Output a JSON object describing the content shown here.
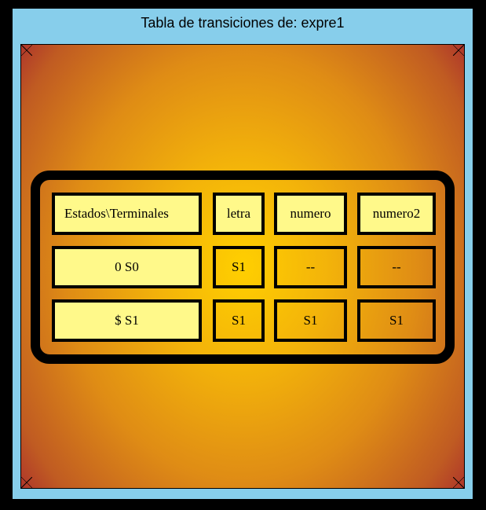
{
  "window": {
    "title": "Tabla de transiciones de: expre1"
  },
  "colors": {
    "frame": "#87ceeb",
    "background": "#000000",
    "cell_light": "#fff98a",
    "gradient_center": "#ffcf00",
    "gradient_edge": "#b03a2a"
  },
  "table": {
    "headers": [
      "Estados\\Terminales",
      "letra",
      "numero",
      "numero2"
    ],
    "rows": [
      [
        "0 S0",
        "S1",
        "--",
        "--"
      ],
      [
        "$  S1",
        "S1",
        "S1",
        "S1"
      ]
    ]
  }
}
